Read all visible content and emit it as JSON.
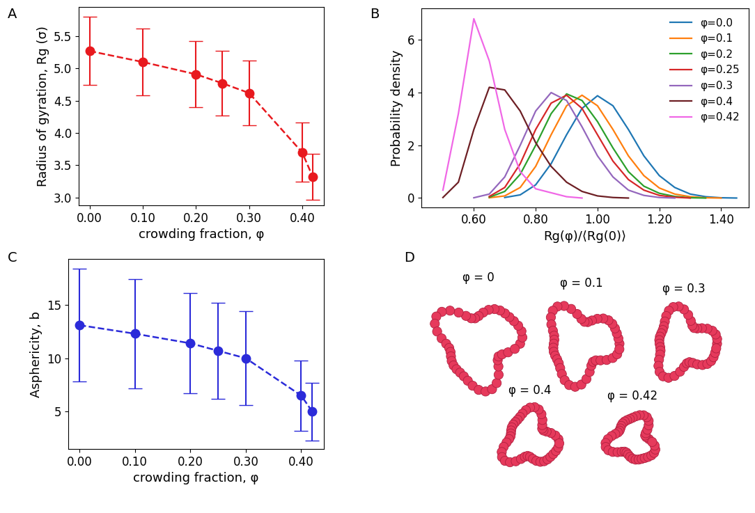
{
  "chart_data": [
    {
      "panel_label": "A",
      "type": "errorbar",
      "x_label": "crowding fraction, φ",
      "y_label": "Radius of gyration, Rg (σ)",
      "x": [
        0.0,
        0.1,
        0.2,
        0.25,
        0.3,
        0.4,
        0.42
      ],
      "values": [
        5.27,
        5.1,
        4.91,
        4.77,
        4.62,
        3.7,
        3.32
      ],
      "error": [
        0.53,
        0.52,
        0.51,
        0.5,
        0.5,
        0.46,
        0.36
      ],
      "color": "#e8191e",
      "marker": "o",
      "line_style": "dashed",
      "xlim": [
        -0.021,
        0.441
      ],
      "xticks": [
        {
          "value": 0.0,
          "label": "0.00"
        },
        {
          "value": 0.1,
          "label": "0.10"
        },
        {
          "value": 0.2,
          "label": "0.20"
        },
        {
          "value": 0.3,
          "label": "0.30"
        },
        {
          "value": 0.4,
          "label": "0.40"
        }
      ],
      "ylim": [
        2.88,
        5.95
      ],
      "yticks": [
        {
          "value": 3.0,
          "label": "3.0"
        },
        {
          "value": 3.5,
          "label": "3.5"
        },
        {
          "value": 4.0,
          "label": "4.0"
        },
        {
          "value": 4.5,
          "label": "4.5"
        },
        {
          "value": 5.0,
          "label": "5.0"
        },
        {
          "value": 5.5,
          "label": "5.5"
        }
      ]
    },
    {
      "panel_label": "B",
      "type": "line",
      "x_label": "Rg(φ)/⟨Rg(0)⟩",
      "y_label": "Probability density",
      "x": [
        0.45,
        0.5,
        0.55,
        0.6,
        0.65,
        0.7,
        0.75,
        0.8,
        0.85,
        0.9,
        0.95,
        1.0,
        1.05,
        1.1,
        1.15,
        1.2,
        1.25,
        1.3,
        1.35,
        1.4,
        1.45
      ],
      "series": [
        {
          "name": "φ=0.0",
          "color": "#1f77b4",
          "values": [
            null,
            null,
            null,
            null,
            null,
            0.02,
            0.12,
            0.5,
            1.3,
            2.4,
            3.4,
            3.88,
            3.5,
            2.6,
            1.6,
            0.85,
            0.4,
            0.15,
            0.05,
            0.01,
            0.0
          ]
        },
        {
          "name": "φ=0.1",
          "color": "#ff7f0e",
          "values": [
            null,
            null,
            null,
            null,
            0.01,
            0.08,
            0.4,
            1.2,
            2.4,
            3.5,
            3.9,
            3.5,
            2.6,
            1.6,
            0.85,
            0.38,
            0.15,
            0.05,
            0.01,
            0.0,
            null
          ]
        },
        {
          "name": "φ=0.2",
          "color": "#2ca02c",
          "values": [
            null,
            null,
            null,
            null,
            0.03,
            0.25,
            0.9,
            2.0,
            3.2,
            3.95,
            3.7,
            2.9,
            1.9,
            1.0,
            0.45,
            0.18,
            0.06,
            0.01,
            0.0,
            null,
            null
          ]
        },
        {
          "name": "φ=0.25",
          "color": "#d62728",
          "values": [
            null,
            null,
            null,
            null,
            0.06,
            0.4,
            1.3,
            2.6,
            3.6,
            3.9,
            3.4,
            2.4,
            1.4,
            0.7,
            0.3,
            0.1,
            0.03,
            0.0,
            null,
            null,
            null
          ]
        },
        {
          "name": "φ=0.3",
          "color": "#9467bd",
          "values": [
            null,
            null,
            null,
            0.01,
            0.15,
            0.8,
            2.0,
            3.3,
            4.0,
            3.7,
            2.7,
            1.6,
            0.8,
            0.3,
            0.1,
            0.02,
            0.0,
            null,
            null,
            null,
            null
          ]
        },
        {
          "name": "φ=0.4",
          "color": "#6d1f24",
          "values": [
            null,
            0.02,
            0.6,
            2.6,
            4.2,
            4.1,
            3.3,
            2.1,
            1.2,
            0.6,
            0.25,
            0.08,
            0.02,
            0.0,
            null,
            null,
            null,
            null,
            null,
            null,
            null
          ]
        },
        {
          "name": "φ=0.42",
          "color": "#f067e6",
          "values": [
            null,
            0.3,
            3.2,
            6.8,
            5.2,
            2.6,
            1.0,
            0.35,
            0.2,
            0.05,
            0.0,
            null,
            null,
            null,
            null,
            null,
            null,
            null,
            null,
            null,
            null
          ]
        }
      ],
      "legend": "upper right",
      "xlim": [
        0.43,
        1.49
      ],
      "xticks": [
        {
          "value": 0.6,
          "label": "0.60"
        },
        {
          "value": 0.8,
          "label": "0.80"
        },
        {
          "value": 1.0,
          "label": "1.00"
        },
        {
          "value": 1.2,
          "label": "1.20"
        },
        {
          "value": 1.4,
          "label": "1.40"
        }
      ],
      "ylim": [
        -0.35,
        7.2
      ],
      "yticks": [
        0,
        2,
        4,
        6
      ]
    },
    {
      "panel_label": "C",
      "type": "errorbar",
      "x_label": "crowding fraction, φ",
      "y_label": "Asphericity, b",
      "x": [
        0.0,
        0.1,
        0.2,
        0.25,
        0.3,
        0.4,
        0.42
      ],
      "values": [
        13.1,
        12.3,
        11.4,
        10.7,
        10.0,
        6.5,
        5.0
      ],
      "error": [
        5.3,
        5.1,
        4.7,
        4.5,
        4.4,
        3.3,
        2.7
      ],
      "color": "#2b2bd9",
      "marker": "o",
      "line_style": "dashed",
      "xlim": [
        -0.021,
        0.441
      ],
      "xticks": [
        {
          "value": 0.0,
          "label": "0.00"
        },
        {
          "value": 0.1,
          "label": "0.10"
        },
        {
          "value": 0.2,
          "label": "0.20"
        },
        {
          "value": 0.3,
          "label": "0.30"
        },
        {
          "value": 0.4,
          "label": "0.40"
        }
      ],
      "ylim": [
        1.5,
        19.3
      ],
      "yticks": [
        5,
        10,
        15
      ]
    }
  ],
  "diagram": {
    "panel_label": "D",
    "conformations": [
      {
        "label": "φ = 0"
      },
      {
        "label": "φ = 0.1"
      },
      {
        "label": "φ = 0.3"
      },
      {
        "label": "φ = 0.4"
      },
      {
        "label": "φ = 0.42"
      }
    ]
  }
}
